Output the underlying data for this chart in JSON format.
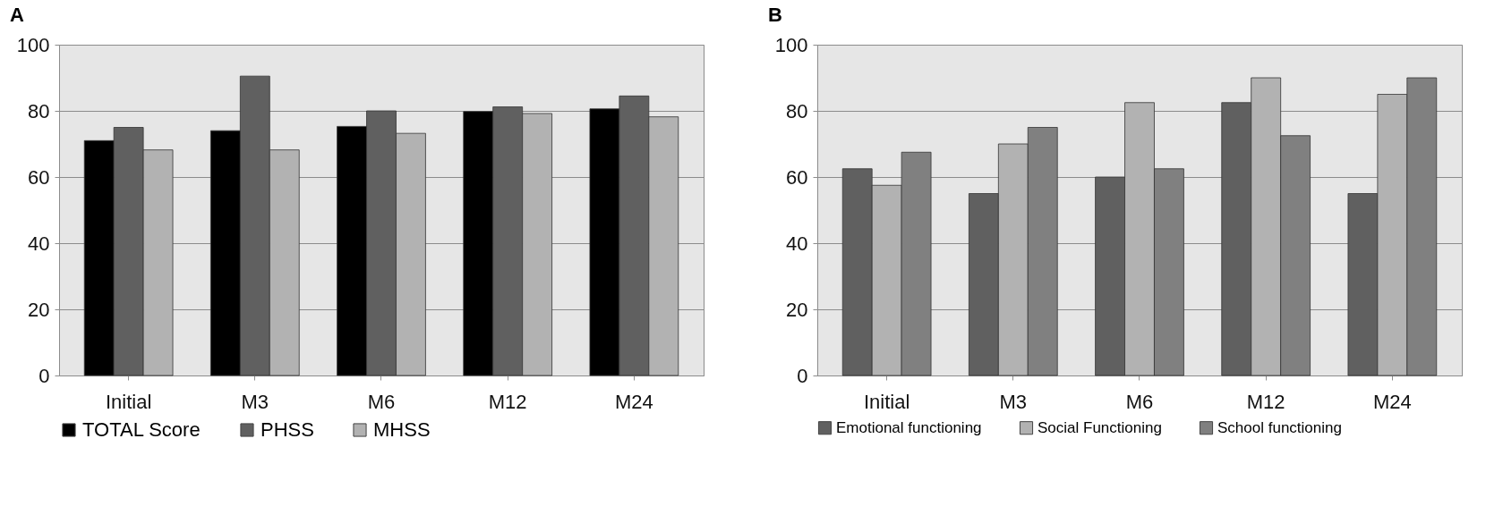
{
  "chart_data": [
    {
      "type": "bar",
      "title": "A",
      "categories": [
        "Initial",
        "M3",
        "M6",
        "M12",
        "M24"
      ],
      "ylim": [
        0,
        100
      ],
      "yticks": [
        0,
        20,
        40,
        60,
        80,
        100
      ],
      "grid": "y",
      "legend": "bottom",
      "series": [
        {
          "name": "TOTAL Score",
          "color": "#000000",
          "values": [
            71,
            74,
            75.3,
            79.8,
            80.6
          ]
        },
        {
          "name": "PHSS",
          "color": "#606060",
          "values": [
            75,
            90.5,
            80,
            81.2,
            84.5
          ]
        },
        {
          "name": "MHSS",
          "color": "#b2b2b2",
          "values": [
            68.2,
            68.2,
            73.2,
            79.2,
            78.2
          ]
        }
      ]
    },
    {
      "type": "bar",
      "title": "B",
      "categories": [
        "Initial",
        "M3",
        "M6",
        "M12",
        "M24"
      ],
      "ylim": [
        0,
        100
      ],
      "yticks": [
        0,
        20,
        40,
        60,
        80,
        100
      ],
      "grid": "y",
      "legend": "bottom",
      "series": [
        {
          "name": "Emotional functioning",
          "color": "#606060",
          "values": [
            62.5,
            55,
            60,
            82.5,
            55
          ]
        },
        {
          "name": "Social Functioning",
          "color": "#b2b2b2",
          "values": [
            57.5,
            70,
            82.5,
            90,
            85
          ]
        },
        {
          "name": "School functioning",
          "color": "#808080",
          "values": [
            67.5,
            75,
            62.5,
            72.5,
            90
          ]
        }
      ]
    }
  ]
}
